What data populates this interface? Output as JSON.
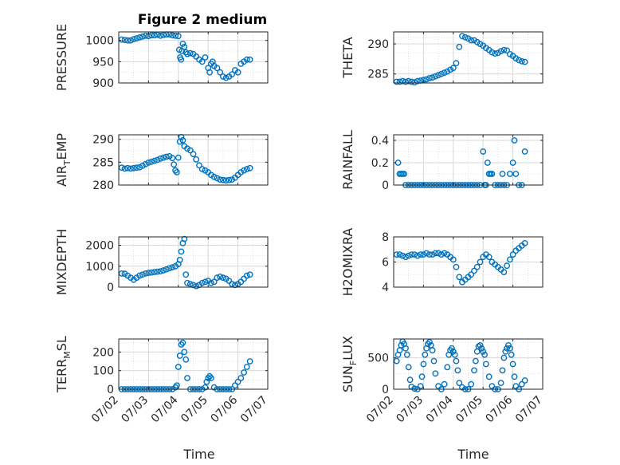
{
  "figure": {
    "title": "Figure 2 medium",
    "time_label": "Time",
    "date_ticks": [
      "07/02",
      "07/03",
      "07/04",
      "07/05",
      "07/06",
      "07/07"
    ]
  },
  "colors": {
    "marker": "#0072BD",
    "axis": "#262626",
    "grid": "#d9d9d9",
    "background": "#ffffff"
  },
  "chart_data": [
    {
      "type": "scatter",
      "ylabel": "PRESSURE",
      "ylim": [
        900,
        1020
      ],
      "yticks": [
        900,
        950,
        1000
      ],
      "xlim": [
        0,
        5
      ],
      "grid": true,
      "marker": "open-circle",
      "x": [
        0.1,
        0.2,
        0.3,
        0.4,
        0.5,
        0.6,
        0.7,
        0.8,
        0.9,
        1.0,
        1.1,
        1.2,
        1.3,
        1.4,
        1.5,
        1.6,
        1.7,
        1.8,
        1.9,
        2.0,
        2.03,
        2.06,
        2.09,
        2.12,
        2.15,
        2.2,
        2.25,
        2.3,
        2.4,
        2.5,
        2.6,
        2.7,
        2.8,
        2.9,
        3.0,
        3.05,
        3.1,
        3.15,
        3.2,
        3.3,
        3.4,
        3.5,
        3.6,
        3.7,
        3.8,
        3.9,
        4.0,
        4.1,
        4.2,
        4.3,
        4.4
      ],
      "y": [
        1002,
        1001,
        1000,
        1000,
        1003,
        1005,
        1007,
        1009,
        1011,
        1010,
        1012,
        1012,
        1013,
        1011,
        1013,
        1014,
        1014,
        1012,
        1011,
        1010,
        978,
        960,
        955,
        975,
        992,
        985,
        972,
        968,
        970,
        968,
        962,
        955,
        950,
        960,
        935,
        925,
        945,
        950,
        940,
        935,
        925,
        915,
        912,
        915,
        920,
        930,
        925,
        945,
        950,
        955,
        955
      ]
    },
    {
      "type": "scatter",
      "ylabel": "THETA",
      "ylim": [
        283.5,
        292
      ],
      "yticks": [
        285,
        290
      ],
      "xlim": [
        0,
        5
      ],
      "grid": true,
      "marker": "open-circle",
      "x": [
        0.1,
        0.2,
        0.3,
        0.4,
        0.5,
        0.6,
        0.7,
        0.8,
        0.9,
        1.0,
        1.1,
        1.2,
        1.3,
        1.4,
        1.5,
        1.6,
        1.7,
        1.8,
        1.9,
        2.0,
        2.1,
        2.2,
        2.3,
        2.4,
        2.5,
        2.6,
        2.7,
        2.8,
        2.9,
        3.0,
        3.1,
        3.2,
        3.3,
        3.4,
        3.5,
        3.6,
        3.7,
        3.8,
        3.9,
        4.0,
        4.1,
        4.2,
        4.3,
        4.4
      ],
      "y": [
        283.7,
        283.7,
        283.8,
        283.7,
        283.8,
        283.7,
        283.6,
        283.8,
        283.9,
        284.0,
        284.1,
        284.3,
        284.4,
        284.6,
        284.8,
        285.0,
        285.2,
        285.4,
        285.7,
        286.0,
        286.8,
        289.5,
        291.3,
        291.1,
        290.9,
        290.6,
        290.6,
        290.3,
        290.0,
        289.7,
        289.3,
        289.0,
        288.6,
        288.4,
        288.5,
        288.8,
        289.0,
        288.9,
        288.3,
        288.0,
        287.6,
        287.3,
        287.1,
        287.0
      ]
    },
    {
      "type": "scatter",
      "ylabel": "AIR_T_EMP",
      "ylim": [
        280,
        291
      ],
      "yticks": [
        280,
        285,
        290
      ],
      "xlim": [
        0,
        5
      ],
      "grid": true,
      "marker": "open-circle",
      "x": [
        0.1,
        0.2,
        0.3,
        0.4,
        0.5,
        0.6,
        0.7,
        0.8,
        0.9,
        1.0,
        1.1,
        1.2,
        1.3,
        1.4,
        1.5,
        1.6,
        1.7,
        1.8,
        1.85,
        1.9,
        1.95,
        2.0,
        2.05,
        2.1,
        2.15,
        2.2,
        2.3,
        2.4,
        2.5,
        2.6,
        2.7,
        2.8,
        2.9,
        3.0,
        3.1,
        3.2,
        3.3,
        3.4,
        3.5,
        3.6,
        3.7,
        3.8,
        3.9,
        4.0,
        4.1,
        4.2,
        4.3,
        4.4
      ],
      "y": [
        283.8,
        283.6,
        283.7,
        283.6,
        283.7,
        283.8,
        283.9,
        284.2,
        284.6,
        284.9,
        285.1,
        285.3,
        285.5,
        285.8,
        286.0,
        286.2,
        286.3,
        285.9,
        284.5,
        283.2,
        282.8,
        286.0,
        289.5,
        290.5,
        289.8,
        288.5,
        288.0,
        287.6,
        286.8,
        285.6,
        284.3,
        283.5,
        283.2,
        282.8,
        282.2,
        281.8,
        281.5,
        281.2,
        281.1,
        281.0,
        281.1,
        281.2,
        281.6,
        282.2,
        282.8,
        283.2,
        283.5,
        283.7
      ]
    },
    {
      "type": "scatter",
      "ylabel": "RAINFALL",
      "ylim": [
        0,
        0.45
      ],
      "yticks": [
        0,
        0.2,
        0.4
      ],
      "xlim": [
        0,
        5
      ],
      "grid": true,
      "marker": "open-circle",
      "x": [
        0.15,
        0.2,
        0.25,
        0.3,
        0.35,
        0.4,
        0.5,
        0.6,
        0.7,
        0.8,
        0.9,
        1.0,
        1.1,
        1.2,
        1.3,
        1.4,
        1.5,
        1.6,
        1.7,
        1.8,
        1.9,
        2.0,
        2.1,
        2.2,
        2.3,
        2.4,
        2.5,
        2.6,
        2.7,
        2.8,
        2.9,
        3.0,
        3.05,
        3.1,
        3.15,
        3.2,
        3.25,
        3.3,
        3.4,
        3.5,
        3.6,
        3.65,
        3.7,
        3.8,
        3.9,
        4.0,
        4.05,
        4.1,
        4.2,
        4.3,
        4.4
      ],
      "y": [
        0.2,
        0.1,
        0.1,
        0.1,
        0.1,
        0.0,
        0.0,
        0.0,
        0.0,
        0.0,
        0.0,
        0.0,
        0.0,
        0.0,
        0.0,
        0.0,
        0.0,
        0.0,
        0.0,
        0.0,
        0.0,
        0.0,
        0.0,
        0.0,
        0.0,
        0.0,
        0.0,
        0.0,
        0.0,
        0.0,
        0.0,
        0.3,
        0.0,
        0.0,
        0.2,
        0.1,
        0.1,
        0.1,
        0.0,
        0.0,
        0.0,
        0.1,
        0.0,
        0.0,
        0.1,
        0.2,
        0.4,
        0.1,
        0.0,
        0.0,
        0.3
      ]
    },
    {
      "type": "scatter",
      "ylabel": "MIXDEPTH",
      "ylim": [
        0,
        2400
      ],
      "yticks": [
        0,
        1000,
        2000
      ],
      "xlim": [
        0,
        5
      ],
      "grid": true,
      "marker": "open-circle",
      "x": [
        0.1,
        0.2,
        0.3,
        0.4,
        0.5,
        0.6,
        0.7,
        0.8,
        0.9,
        1.0,
        1.1,
        1.2,
        1.3,
        1.4,
        1.5,
        1.6,
        1.7,
        1.8,
        1.9,
        2.0,
        2.05,
        2.1,
        2.15,
        2.2,
        2.25,
        2.3,
        2.4,
        2.5,
        2.6,
        2.7,
        2.8,
        2.9,
        3.0,
        3.1,
        3.2,
        3.3,
        3.4,
        3.5,
        3.6,
        3.7,
        3.8,
        3.9,
        4.0,
        4.1,
        4.2,
        4.3,
        4.4
      ],
      "y": [
        650,
        640,
        550,
        450,
        350,
        450,
        550,
        600,
        650,
        680,
        700,
        720,
        740,
        760,
        800,
        850,
        900,
        950,
        1000,
        1100,
        1300,
        1700,
        2100,
        2300,
        600,
        200,
        150,
        100,
        50,
        100,
        200,
        250,
        300,
        200,
        250,
        450,
        500,
        450,
        400,
        300,
        150,
        100,
        150,
        250,
        400,
        550,
        600
      ]
    },
    {
      "type": "scatter",
      "ylabel": "H2OMIXRA",
      "ylim": [
        4,
        8
      ],
      "yticks": [
        4,
        6,
        8
      ],
      "xlim": [
        0,
        5
      ],
      "grid": true,
      "marker": "open-circle",
      "x": [
        0.1,
        0.2,
        0.3,
        0.4,
        0.5,
        0.6,
        0.7,
        0.8,
        0.9,
        1.0,
        1.1,
        1.2,
        1.3,
        1.4,
        1.5,
        1.6,
        1.7,
        1.8,
        1.9,
        2.0,
        2.1,
        2.2,
        2.3,
        2.4,
        2.5,
        2.6,
        2.7,
        2.8,
        2.9,
        3.0,
        3.1,
        3.2,
        3.3,
        3.4,
        3.5,
        3.6,
        3.7,
        3.8,
        3.9,
        4.0,
        4.1,
        4.2,
        4.3,
        4.4
      ],
      "y": [
        6.6,
        6.6,
        6.5,
        6.4,
        6.5,
        6.6,
        6.6,
        6.5,
        6.6,
        6.6,
        6.7,
        6.6,
        6.6,
        6.7,
        6.7,
        6.6,
        6.7,
        6.6,
        6.4,
        6.2,
        5.6,
        4.8,
        4.4,
        4.6,
        4.8,
        5.0,
        5.3,
        5.6,
        6.0,
        6.4,
        6.6,
        6.4,
        6.0,
        5.8,
        5.6,
        5.4,
        5.2,
        5.7,
        6.2,
        6.6,
        6.9,
        7.1,
        7.3,
        7.5
      ]
    },
    {
      "type": "scatter",
      "ylabel": "TERR_M_SL",
      "ylim": [
        0,
        270
      ],
      "yticks": [
        0,
        100,
        200
      ],
      "xlim": [
        0,
        5
      ],
      "grid": true,
      "marker": "open-circle",
      "x": [
        0.1,
        0.2,
        0.3,
        0.4,
        0.5,
        0.6,
        0.7,
        0.8,
        0.9,
        1.0,
        1.1,
        1.2,
        1.3,
        1.4,
        1.5,
        1.6,
        1.7,
        1.8,
        1.9,
        1.95,
        2.0,
        2.05,
        2.1,
        2.15,
        2.2,
        2.25,
        2.3,
        2.4,
        2.5,
        2.6,
        2.7,
        2.8,
        2.9,
        2.95,
        3.0,
        3.05,
        3.1,
        3.2,
        3.3,
        3.4,
        3.5,
        3.6,
        3.7,
        3.8,
        3.9,
        4.0,
        4.1,
        4.2,
        4.3,
        4.4
      ],
      "y": [
        0,
        0,
        0,
        0,
        0,
        0,
        0,
        0,
        0,
        0,
        0,
        0,
        0,
        0,
        0,
        0,
        0,
        0,
        10,
        20,
        120,
        180,
        240,
        250,
        200,
        160,
        60,
        0,
        0,
        0,
        0,
        0,
        10,
        40,
        60,
        70,
        60,
        10,
        0,
        0,
        0,
        0,
        0,
        0,
        20,
        40,
        60,
        90,
        120,
        150
      ]
    },
    {
      "type": "scatter",
      "ylabel": "SUN_F_LUX",
      "ylim": [
        0,
        800
      ],
      "yticks": [
        0,
        500
      ],
      "xlim": [
        0,
        5
      ],
      "grid": true,
      "marker": "open-circle",
      "x": [
        0.1,
        0.15,
        0.2,
        0.25,
        0.3,
        0.35,
        0.4,
        0.45,
        0.5,
        0.55,
        0.6,
        0.7,
        0.8,
        0.9,
        0.95,
        1.0,
        1.05,
        1.1,
        1.15,
        1.2,
        1.25,
        1.3,
        1.35,
        1.4,
        1.5,
        1.6,
        1.7,
        1.8,
        1.85,
        1.9,
        1.95,
        2.0,
        2.05,
        2.1,
        2.15,
        2.2,
        2.3,
        2.4,
        2.5,
        2.6,
        2.7,
        2.75,
        2.8,
        2.85,
        2.9,
        2.95,
        3.0,
        3.05,
        3.1,
        3.2,
        3.3,
        3.4,
        3.5,
        3.6,
        3.65,
        3.7,
        3.75,
        3.8,
        3.85,
        3.9,
        3.95,
        4.0,
        4.05,
        4.1,
        4.2,
        4.3,
        4.4
      ],
      "y": [
        450,
        550,
        620,
        700,
        760,
        720,
        650,
        550,
        350,
        150,
        40,
        10,
        0,
        50,
        200,
        400,
        550,
        650,
        720,
        750,
        700,
        620,
        450,
        250,
        50,
        0,
        80,
        350,
        550,
        620,
        650,
        600,
        550,
        450,
        300,
        100,
        30,
        0,
        0,
        80,
        300,
        450,
        600,
        680,
        700,
        650,
        600,
        550,
        400,
        200,
        50,
        0,
        0,
        100,
        300,
        500,
        600,
        650,
        700,
        650,
        550,
        400,
        200,
        50,
        0,
        80,
        140
      ]
    }
  ]
}
